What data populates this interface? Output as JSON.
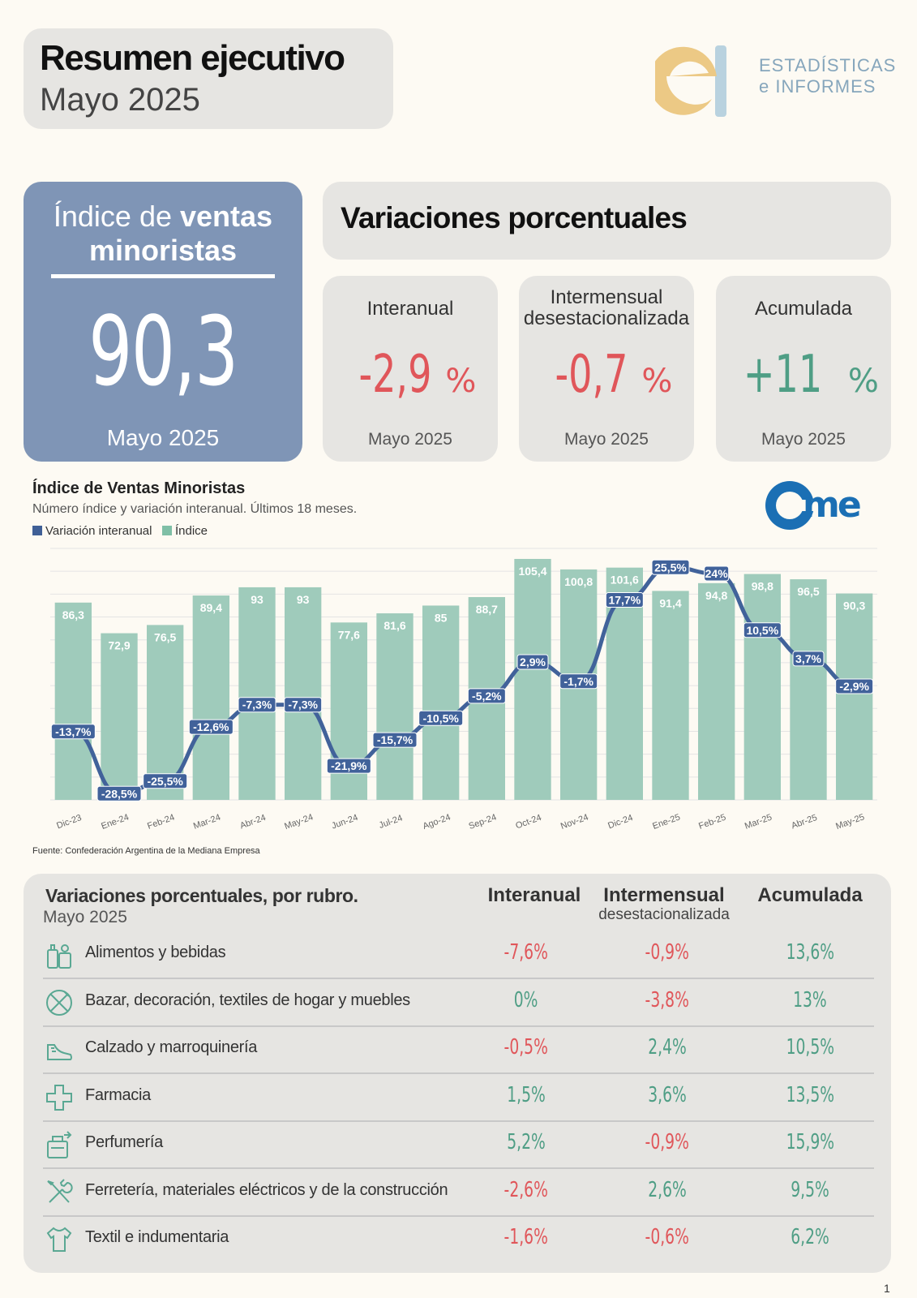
{
  "header": {
    "title": "Resumen ejecutivo",
    "period": "Mayo 2025"
  },
  "logo": {
    "line1": "ESTADÍSTICAS",
    "line2": "e INFORMES",
    "letter": "e",
    "colors": {
      "e": "#ecc985",
      "bar": "#b9d2df"
    }
  },
  "index_card": {
    "title_plain": "Índice de ",
    "title_bold": "ventas",
    "title_line2": "minoristas",
    "value": "90,3",
    "period": "Mayo 2025"
  },
  "variations": {
    "header": "Variaciones porcentuales",
    "cards": [
      {
        "title": "Interanual",
        "subtitle": "",
        "value": "-2,9",
        "unit": "%",
        "period": "Mayo 2025",
        "color": "#e0565a"
      },
      {
        "title": "Intermensual",
        "subtitle": "desestacionalizada",
        "value": "-0,7",
        "unit": "%",
        "period": "Mayo 2025",
        "color": "#e0565a"
      },
      {
        "title": "Acumulada",
        "subtitle": "",
        "value": "+11",
        "unit": " %",
        "period": "Mayo 2025",
        "color": "#4f9e85"
      }
    ]
  },
  "chart_data": {
    "type": "bar",
    "title": "Índice de Ventas Minoristas",
    "subtitle": "Número índice y variación interanual. Últimos 18 meses.",
    "legend": [
      "Variación interanual",
      "Índice"
    ],
    "legend_colors": [
      "#3f5f96",
      "#7fbfa6"
    ],
    "categories": [
      "Dic-23",
      "Ene-24",
      "Feb-24",
      "Mar-24",
      "Abr-24",
      "May-24",
      "Jun-24",
      "Jul-24",
      "Ago-24",
      "Sep-24",
      "Oct-24",
      "Nov-24",
      "Dic-24",
      "Ene-25",
      "Feb-25",
      "Mar-25",
      "Abr-25",
      "May-25"
    ],
    "series": [
      {
        "name": "Índice",
        "type": "bar",
        "color": "#9fcbbb",
        "values": [
          86.3,
          72.9,
          76.5,
          89.4,
          93,
          93,
          77.6,
          81.6,
          85,
          88.7,
          105.4,
          100.8,
          101.6,
          91.4,
          94.8,
          98.8,
          96.5,
          90.3
        ],
        "labels": [
          "86,3",
          "72,9",
          "76,5",
          "89,4",
          "93",
          "93",
          "77,6",
          "81,6",
          "85",
          "88,7",
          "105,4",
          "100,8",
          "101,6",
          "91,4",
          "94,8",
          "98,8",
          "96,5",
          "90,3"
        ]
      },
      {
        "name": "Variación interanual",
        "type": "line",
        "color": "#41629a",
        "values": [
          -13.7,
          -28.5,
          -25.5,
          -12.6,
          -7.3,
          -7.3,
          -21.9,
          -15.7,
          -10.5,
          -5.2,
          2.9,
          -1.7,
          17.7,
          25.5,
          24,
          10.5,
          3.7,
          -2.9
        ],
        "labels": [
          "-13,7%",
          "-28,5%",
          "-25,5%",
          "-12,6%",
          "-7,3%",
          "-7,3%",
          "-21,9%",
          "-15,7%",
          "-10,5%",
          "-5,2%",
          "2,9%",
          "-1,7%",
          "17,7%",
          "25,5%",
          "24%",
          "10,5%",
          "3,7%",
          "-2,9%"
        ]
      }
    ],
    "ylim_index": [
      0,
      110
    ],
    "ylim_variation": [
      -30,
      30
    ],
    "grid": true,
    "source": "Fuente: Confederación Argentina de la Mediana Empresa",
    "brand": "came"
  },
  "table": {
    "title": "Variaciones porcentuales, por rubro.",
    "period": "Mayo 2025",
    "columns": {
      "interanual": "Interanual",
      "intermensual": "Intermensual",
      "intermensual_sub": "desestacionalizada",
      "acumulada": "Acumulada"
    },
    "rows": [
      {
        "icon": "food-icon",
        "label": "Alimentos y bebidas",
        "interanual": "-7,6%",
        "intermensual": "-0,9%",
        "acumulada": "13,6%"
      },
      {
        "icon": "bazar-icon",
        "label": "Bazar, decoración, textiles de hogar y muebles",
        "interanual": "0%",
        "intermensual": "-3,8%",
        "acumulada": "13%"
      },
      {
        "icon": "shoe-icon",
        "label": "Calzado y marroquinería",
        "interanual": "-0,5%",
        "intermensual": "2,4%",
        "acumulada": "10,5%"
      },
      {
        "icon": "pharmacy-cross-icon",
        "label": "Farmacia",
        "interanual": "1,5%",
        "intermensual": "3,6%",
        "acumulada": "13,5%"
      },
      {
        "icon": "perfume-icon",
        "label": "Perfumería",
        "interanual": "5,2%",
        "intermensual": "-0,9%",
        "acumulada": "15,9%"
      },
      {
        "icon": "tools-icon",
        "label": "Ferretería, materiales eléctricos y de la construcción",
        "interanual": "-2,6%",
        "intermensual": "2,6%",
        "acumulada": "9,5%"
      },
      {
        "icon": "shirt-icon",
        "label": "Textil e indumentaria",
        "interanual": "-1,6%",
        "intermensual": "-0,6%",
        "acumulada": "6,2%"
      }
    ]
  },
  "page_number": "1"
}
